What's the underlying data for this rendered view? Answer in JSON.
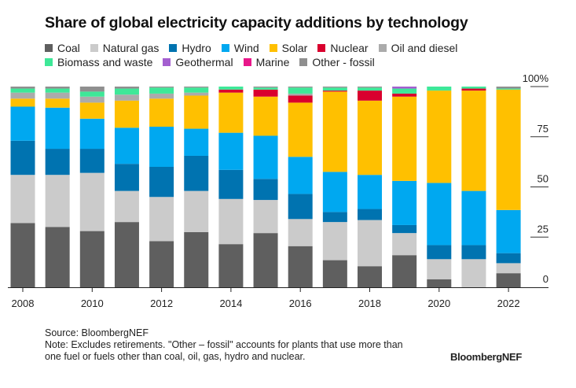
{
  "chart_data": {
    "type": "bar",
    "stacked": true,
    "title": "Share of global electricity capacity additions by technology",
    "xlabel": "",
    "ylabel": "",
    "ylim": [
      0,
      100
    ],
    "y_ticks": [
      0,
      25,
      50,
      75,
      100
    ],
    "y_tick_labels": [
      "0",
      "25",
      "50",
      "75",
      "100%"
    ],
    "y_axis_position": "right",
    "x_tick_labels": [
      "2008",
      "2010",
      "2012",
      "2014",
      "2016",
      "2018",
      "2020",
      "2022"
    ],
    "legend_position": "top-left",
    "grid": false,
    "categories": [
      "2008",
      "2009",
      "2010",
      "2011",
      "2012",
      "2013",
      "2014",
      "2015",
      "2016",
      "2017",
      "2018",
      "2019",
      "2020",
      "2021",
      "2022"
    ],
    "series": [
      {
        "name": "Coal",
        "color": "#5f5f5f",
        "values": [
          32,
          30,
          28,
          32.5,
          23,
          27.5,
          21.5,
          27,
          20.5,
          13.5,
          10.5,
          16,
          4,
          0,
          7
        ]
      },
      {
        "name": "Natural gas",
        "color": "#cbcbcb",
        "values": [
          24,
          26,
          29,
          15.5,
          22,
          20.5,
          22.5,
          16.5,
          13.5,
          19,
          23,
          11,
          10,
          14,
          5
        ]
      },
      {
        "name": "Hydro",
        "color": "#0073b0",
        "values": [
          17,
          13,
          12,
          13.5,
          15,
          17.5,
          14.5,
          10.5,
          12.5,
          5,
          5.5,
          4,
          7,
          7,
          5
        ]
      },
      {
        "name": "Wind",
        "color": "#00a8f0",
        "values": [
          17,
          20.5,
          15,
          18,
          20,
          13.5,
          18.5,
          21.5,
          18.5,
          20,
          17,
          22,
          31,
          27,
          21.5
        ]
      },
      {
        "name": "Solar",
        "color": "#ffc000",
        "values": [
          4,
          4.5,
          8,
          13.5,
          14,
          16.5,
          20,
          19.5,
          27,
          40,
          37,
          42,
          46,
          50,
          60
        ]
      },
      {
        "name": "Nuclear",
        "color": "#d9002e",
        "values": [
          0,
          0,
          0,
          0,
          0,
          0,
          1.5,
          3.5,
          3.5,
          0.5,
          5,
          1.5,
          0,
          1,
          0
        ]
      },
      {
        "name": "Oil and diesel",
        "color": "#ababab",
        "values": [
          3,
          3,
          3,
          3,
          2.5,
          1.5,
          0,
          0,
          1,
          0,
          0,
          0,
          0,
          0,
          0
        ]
      },
      {
        "name": "Biomass and waste",
        "color": "#3ee898",
        "values": [
          2,
          2,
          2.5,
          3,
          3,
          2.5,
          1.5,
          1,
          3,
          1.5,
          1.5,
          2.5,
          2,
          1,
          0.5
        ]
      },
      {
        "name": "Geothermal",
        "color": "#a45fd0",
        "values": [
          0,
          0,
          0,
          0,
          0,
          0,
          0,
          0,
          0,
          0,
          0,
          1,
          0,
          0,
          0
        ]
      },
      {
        "name": "Marine",
        "color": "#e8178a",
        "values": [
          0,
          0,
          0,
          0,
          0,
          0,
          0,
          0,
          0,
          0,
          0,
          0,
          0,
          0,
          0
        ]
      },
      {
        "name": "Other - fossil",
        "color": "#8f8f8f",
        "values": [
          1,
          1,
          2.5,
          1,
          0.5,
          0.5,
          0,
          0.5,
          0.5,
          0.5,
          0.5,
          0,
          0,
          0,
          1
        ]
      }
    ]
  },
  "footer": {
    "source": "Source: BloombergNEF",
    "note_line1": "Note: Excludes retirements. \"Other – fossil\" accounts for plants that use more than",
    "note_line2": "one fuel or fuels other than coal, oil, gas, hydro and nuclear.",
    "brand": "BloombergNEF"
  }
}
